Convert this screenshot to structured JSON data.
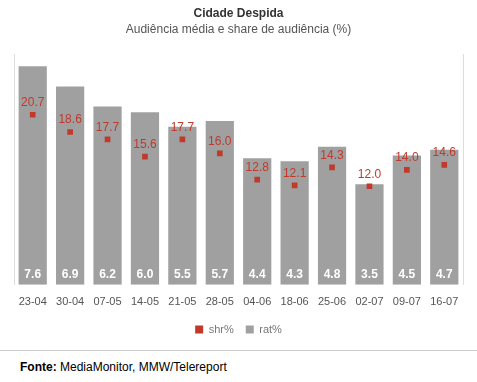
{
  "chart_data": {
    "type": "bar",
    "title": "Cidade Despida",
    "subtitle": "Audiência média e share de audiência (%)",
    "categories": [
      "23-04",
      "30-04",
      "07-05",
      "14-05",
      "21-05",
      "28-05",
      "04-06",
      "18-06",
      "25-06",
      "02-07",
      "09-07",
      "16-07"
    ],
    "series": [
      {
        "name": "rat%",
        "type": "bar",
        "color": "#a0a0a0",
        "values": [
          7.6,
          6.9,
          6.2,
          6.0,
          5.5,
          5.7,
          4.4,
          4.3,
          4.8,
          3.5,
          4.5,
          4.7
        ],
        "value_labels": [
          "7.6",
          "6.9",
          "6.2",
          "6.0",
          "5.5",
          "5.7",
          "4.4",
          "4.3",
          "4.8",
          "3.5",
          "4.5",
          "4.7"
        ]
      },
      {
        "name": "shr%",
        "type": "scatter",
        "marker": "square",
        "color": "#c0392b",
        "axis": "y2",
        "values": [
          20.7,
          18.6,
          17.7,
          15.6,
          17.7,
          16.0,
          12.8,
          12.1,
          14.3,
          12.0,
          14.0,
          14.6
        ],
        "value_labels": [
          "20.7",
          "18.6",
          "17.7",
          "15.6",
          "17.7",
          "16.0",
          "12.8",
          "12.1",
          "14.3",
          "12.0",
          "14.0",
          "14.6"
        ]
      }
    ],
    "ylim": [
      0,
      8
    ],
    "y2lim": [
      0,
      28
    ],
    "grid": false,
    "legend": "bottom",
    "data_labels": true,
    "tick_labels": "x"
  },
  "footer": {
    "label": "Fonte:",
    "text": "MediaMonitor, MMW/Telereport"
  }
}
